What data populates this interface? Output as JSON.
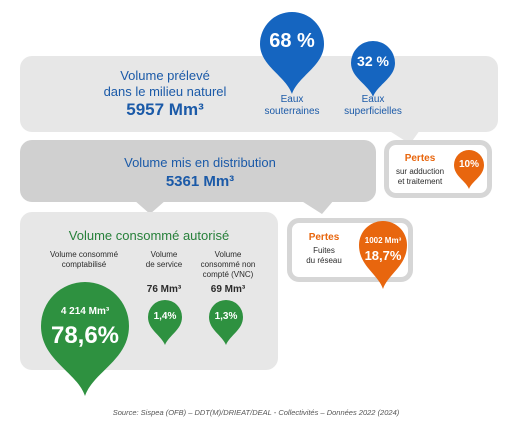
{
  "colors": {
    "blue": "#1565c0",
    "blue_text": "#1b5aa8",
    "green": "#2e9140",
    "green_dark": "#27803a",
    "orange": "#e8660e",
    "panel_grey": "#e7e7e7",
    "panel_mid": "#d0d0d0",
    "text_dark": "#2b2b2b"
  },
  "preleve": {
    "label_line1": "Volume prélevé",
    "label_line2": "dans le milieu naturel",
    "value": "5957 Mm³"
  },
  "souterraines": {
    "percent": "68 %",
    "label_line1": "Eaux",
    "label_line2": "souterraines"
  },
  "superficielles": {
    "percent": "32 %",
    "label_line1": "Eaux",
    "label_line2": "superficielles"
  },
  "pertes_adduction": {
    "title": "Pertes",
    "desc_line1": "sur adduction",
    "desc_line2": "et traitement",
    "percent": "10%"
  },
  "distribution": {
    "label": "Volume mis en distribution",
    "value": "5361 Mm³"
  },
  "pertes_reseau": {
    "title": "Pertes",
    "desc_line1": "Fuites",
    "desc_line2": "du réseau",
    "volume": "1002 Mm³",
    "percent": "18,7%"
  },
  "consomme": {
    "title": "Volume consommé autorisé",
    "comptabilise": {
      "label_line1": "Volume consommé",
      "label_line2": "comptabilisé",
      "volume": "4 214 Mm³",
      "percent": "78,6%"
    },
    "service": {
      "label_line1": "Volume",
      "label_line2": "de service",
      "volume": "76 Mm³",
      "percent": "1,4%"
    },
    "vnc": {
      "label_line1": "Volume",
      "label_line2": "consommé non",
      "label_line3": "compté (VNC)",
      "volume": "69 Mm³",
      "percent": "1,3%"
    }
  },
  "source": "Source: Sispea (OFB) – DDT(M)/DRIEAT/DEAL - Collectivités – Données 2022 (2024)"
}
